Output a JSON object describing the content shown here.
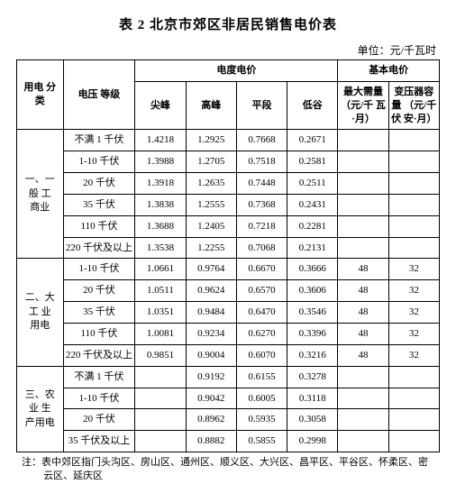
{
  "title": "表 2 北京市郊区非居民销售电价表",
  "unit_line": "单位：元/千瓦时",
  "headers": {
    "category": "用电\n分类",
    "voltage": "电压\n等级",
    "energy_group": "电度电价",
    "basic_group": "基本电价",
    "peak": "尖峰",
    "high": "高峰",
    "flat": "平段",
    "valley": "低谷",
    "max_demand": "最大需量\n（元/千\n瓦·月）",
    "transformer": "变压器容量\n（元/千伏\n安·月）"
  },
  "categories": {
    "cat1": "一、一般\n工商业",
    "cat2": "二、大工\n业用电",
    "cat3": "三、农业\n生产用电"
  },
  "rows": {
    "r1": {
      "v": "不满 1 千伏",
      "p1": "1.4218",
      "p2": "1.2925",
      "p3": "0.7668",
      "p4": "0.2671",
      "m": "",
      "t": ""
    },
    "r2": {
      "v": "1-10 千伏",
      "p1": "1.3988",
      "p2": "1.2705",
      "p3": "0.7518",
      "p4": "0.2581",
      "m": "",
      "t": ""
    },
    "r3": {
      "v": "20 千伏",
      "p1": "1.3918",
      "p2": "1.2635",
      "p3": "0.7448",
      "p4": "0.2511",
      "m": "",
      "t": ""
    },
    "r4": {
      "v": "35 千伏",
      "p1": "1.3838",
      "p2": "1.2555",
      "p3": "0.7368",
      "p4": "0.2431",
      "m": "",
      "t": ""
    },
    "r5": {
      "v": "110 千伏",
      "p1": "1.3688",
      "p2": "1.2405",
      "p3": "0.7218",
      "p4": "0.2281",
      "m": "",
      "t": ""
    },
    "r6": {
      "v": "220 千伏及以上",
      "p1": "1.3538",
      "p2": "1.2255",
      "p3": "0.7068",
      "p4": "0.2131",
      "m": "",
      "t": ""
    },
    "r7": {
      "v": "1-10 千伏",
      "p1": "1.0661",
      "p2": "0.9764",
      "p3": "0.6670",
      "p4": "0.3666",
      "m": "48",
      "t": "32"
    },
    "r8": {
      "v": "20 千伏",
      "p1": "1.0511",
      "p2": "0.9624",
      "p3": "0.6570",
      "p4": "0.3606",
      "m": "48",
      "t": "32"
    },
    "r9": {
      "v": "35 千伏",
      "p1": "1.0351",
      "p2": "0.9484",
      "p3": "0.6470",
      "p4": "0.3546",
      "m": "48",
      "t": "32"
    },
    "r10": {
      "v": "110 千伏",
      "p1": "1.0081",
      "p2": "0.9234",
      "p3": "0.6270",
      "p4": "0.3396",
      "m": "48",
      "t": "32"
    },
    "r11": {
      "v": "220 千伏及以上",
      "p1": "0.9851",
      "p2": "0.9004",
      "p3": "0.6070",
      "p4": "0.3216",
      "m": "48",
      "t": "32"
    },
    "r12": {
      "v": "不满 1 千伏",
      "p1": "",
      "p2": "0.9192",
      "p3": "0.6155",
      "p4": "0.3278",
      "m": "",
      "t": ""
    },
    "r13": {
      "v": "1-10 千伏",
      "p1": "",
      "p2": "0.9042",
      "p3": "0.6005",
      "p4": "0.3118",
      "m": "",
      "t": ""
    },
    "r14": {
      "v": "20 千伏",
      "p1": "",
      "p2": "0.8962",
      "p3": "0.5935",
      "p4": "0.3058",
      "m": "",
      "t": ""
    },
    "r15": {
      "v": "35 千伏及以上",
      "p1": "",
      "p2": "0.8882",
      "p3": "0.5855",
      "p4": "0.2998",
      "m": "",
      "t": ""
    }
  },
  "note": "注：表中郊区指门头沟区、房山区、通州区、顺义区、大兴区、昌平区、平谷区、怀柔区、密云区、延庆区"
}
